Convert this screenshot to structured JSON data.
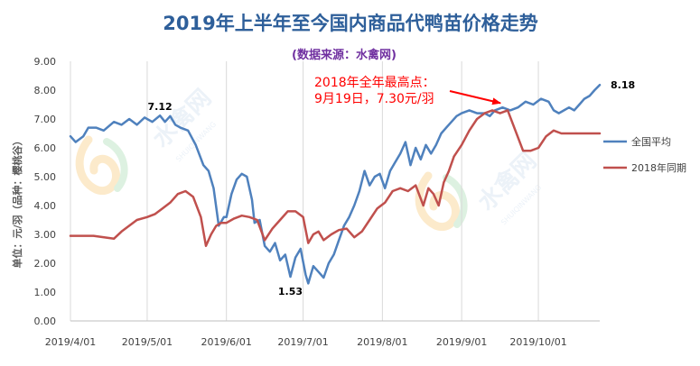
{
  "chart_data": {
    "type": "line",
    "title": "2019年上半年至今国内商品代鸭苗价格走势",
    "subtitle": "(数据来源：水禽网)",
    "ylabel": "单位：元/羽（品种：樱桃谷）",
    "ylim": [
      0,
      9
    ],
    "y_ticks": [
      "0.00",
      "1.00",
      "2.00",
      "3.00",
      "4.00",
      "5.00",
      "6.00",
      "7.00",
      "8.00",
      "9.00"
    ],
    "x_ticks": [
      "2019/4/01",
      "2019/5/01",
      "2019/6/01",
      "2019/7/01",
      "2019/8/01",
      "2019/9/01",
      "2019/10/01"
    ],
    "xlim": [
      "2019/4/01",
      "2019/10/25"
    ],
    "grid": "vertical",
    "legend_position": "right",
    "series": [
      {
        "name": "全国平均",
        "color": "#4f81bd",
        "x": [
          "2019/4/01",
          "2019/4/03",
          "2019/4/06",
          "2019/4/08",
          "2019/4/11",
          "2019/4/14",
          "2019/4/18",
          "2019/4/21",
          "2019/4/24",
          "2019/4/27",
          "2019/4/30",
          "2019/5/03",
          "2019/5/06",
          "2019/5/08",
          "2019/5/10",
          "2019/5/12",
          "2019/5/14",
          "2019/5/17",
          "2019/5/20",
          "2019/5/23",
          "2019/5/25",
          "2019/5/27",
          "2019/5/29",
          "2019/5/31",
          "2019/6/01",
          "2019/6/03",
          "2019/6/05",
          "2019/6/07",
          "2019/6/09",
          "2019/6/11",
          "2019/6/12",
          "2019/6/14",
          "2019/6/16",
          "2019/6/18",
          "2019/6/20",
          "2019/6/22",
          "2019/6/24",
          "2019/6/26",
          "2019/6/28",
          "2019/6/30",
          "2019/7/02",
          "2019/7/03",
          "2019/7/05",
          "2019/7/07",
          "2019/7/09",
          "2019/7/11",
          "2019/7/13",
          "2019/7/15",
          "2019/7/17",
          "2019/7/19",
          "2019/7/21",
          "2019/7/23",
          "2019/7/25",
          "2019/7/27",
          "2019/7/29",
          "2019/7/31",
          "2019/8/02",
          "2019/8/04",
          "2019/8/06",
          "2019/8/08",
          "2019/8/10",
          "2019/8/12",
          "2019/8/14",
          "2019/8/16",
          "2019/8/18",
          "2019/8/20",
          "2019/8/22",
          "2019/8/24",
          "2019/8/26",
          "2019/8/28",
          "2019/8/30",
          "2019/9/01",
          "2019/9/04",
          "2019/9/07",
          "2019/9/10",
          "2019/9/12",
          "2019/9/14",
          "2019/9/17",
          "2019/9/20",
          "2019/9/23",
          "2019/9/26",
          "2019/9/29",
          "2019/10/02",
          "2019/10/05",
          "2019/10/07",
          "2019/10/09",
          "2019/10/11",
          "2019/10/13",
          "2019/10/15",
          "2019/10/17",
          "2019/10/19",
          "2019/10/21",
          "2019/10/23",
          "2019/10/25"
        ],
        "y": [
          6.4,
          6.2,
          6.4,
          6.7,
          6.7,
          6.6,
          6.9,
          6.8,
          7.0,
          6.8,
          7.05,
          6.9,
          7.12,
          6.9,
          7.1,
          6.8,
          6.7,
          6.6,
          6.1,
          5.4,
          5.2,
          4.6,
          3.3,
          3.6,
          3.6,
          4.4,
          4.9,
          5.1,
          5.0,
          4.2,
          3.4,
          3.5,
          2.6,
          2.4,
          2.7,
          2.1,
          2.3,
          1.53,
          2.2,
          2.5,
          1.6,
          1.3,
          1.9,
          1.7,
          1.5,
          2.0,
          2.3,
          2.8,
          3.3,
          3.6,
          4.0,
          4.5,
          5.2,
          4.7,
          5.0,
          5.1,
          4.6,
          5.2,
          5.5,
          5.8,
          6.2,
          5.4,
          6.0,
          5.6,
          6.1,
          5.8,
          6.1,
          6.5,
          6.7,
          6.9,
          7.1,
          7.2,
          7.3,
          7.2,
          7.2,
          7.1,
          7.3,
          7.4,
          7.3,
          7.4,
          7.6,
          7.5,
          7.7,
          7.6,
          7.3,
          7.2,
          7.3,
          7.4,
          7.3,
          7.5,
          7.7,
          7.8,
          8.0,
          8.18
        ]
      },
      {
        "name": "2018年同期",
        "color": "#c0504d",
        "x": [
          "2019/4/01",
          "2019/4/10",
          "2019/4/18",
          "2019/4/21",
          "2019/4/24",
          "2019/4/27",
          "2019/5/01",
          "2019/5/04",
          "2019/5/07",
          "2019/5/10",
          "2019/5/13",
          "2019/5/16",
          "2019/5/19",
          "2019/5/22",
          "2019/5/24",
          "2019/5/26",
          "2019/5/28",
          "2019/5/30",
          "2019/6/01",
          "2019/6/04",
          "2019/6/07",
          "2019/6/10",
          "2019/6/13",
          "2019/6/16",
          "2019/6/19",
          "2019/6/22",
          "2019/6/25",
          "2019/6/28",
          "2019/7/01",
          "2019/7/03",
          "2019/7/05",
          "2019/7/07",
          "2019/7/09",
          "2019/7/12",
          "2019/7/15",
          "2019/7/18",
          "2019/7/21",
          "2019/7/24",
          "2019/7/27",
          "2019/7/30",
          "2019/8/02",
          "2019/8/05",
          "2019/8/08",
          "2019/8/11",
          "2019/8/14",
          "2019/8/17",
          "2019/8/19",
          "2019/8/21",
          "2019/8/23",
          "2019/8/25",
          "2019/8/27",
          "2019/8/29",
          "2019/9/01",
          "2019/9/04",
          "2019/9/07",
          "2019/9/10",
          "2019/9/13",
          "2019/9/16",
          "2019/9/19",
          "2019/9/22",
          "2019/9/25",
          "2019/9/28",
          "2019/10/01",
          "2019/10/04",
          "2019/10/07",
          "2019/10/10",
          "2019/10/14",
          "2019/10/18",
          "2019/10/25"
        ],
        "y": [
          2.95,
          2.95,
          2.85,
          3.1,
          3.3,
          3.5,
          3.6,
          3.7,
          3.9,
          4.1,
          4.4,
          4.5,
          4.3,
          3.6,
          2.6,
          3.0,
          3.3,
          3.4,
          3.4,
          3.55,
          3.65,
          3.6,
          3.5,
          2.8,
          3.2,
          3.5,
          3.8,
          3.8,
          3.6,
          2.7,
          3.0,
          3.1,
          2.8,
          3.0,
          3.15,
          3.2,
          2.9,
          3.1,
          3.5,
          3.9,
          4.1,
          4.5,
          4.6,
          4.5,
          4.7,
          4.0,
          4.6,
          4.4,
          4.0,
          4.8,
          5.2,
          5.7,
          6.1,
          6.6,
          7.0,
          7.2,
          7.3,
          7.2,
          7.3,
          6.6,
          5.9,
          5.9,
          6.0,
          6.4,
          6.6,
          6.5,
          6.5,
          6.5,
          6.5
        ]
      }
    ],
    "data_labels": [
      {
        "text": "7.12",
        "x": "2019/5/06",
        "y": 7.12,
        "series": 0
      },
      {
        "text": "1.53",
        "x": "2019/6/26",
        "y": 1.53,
        "series": 0
      },
      {
        "text": "8.18",
        "x": "2019/10/25",
        "y": 8.18,
        "series": 0
      }
    ],
    "annotation": {
      "lines": [
        "2018年全年最高点：",
        "9月19日，7.30元/羽"
      ],
      "color": "#ff0000",
      "points_to": {
        "x": "2019/9/19",
        "y": 7.3
      }
    },
    "watermark": {
      "text": "水禽网",
      "subtext": "SHUIQINWANG"
    }
  }
}
